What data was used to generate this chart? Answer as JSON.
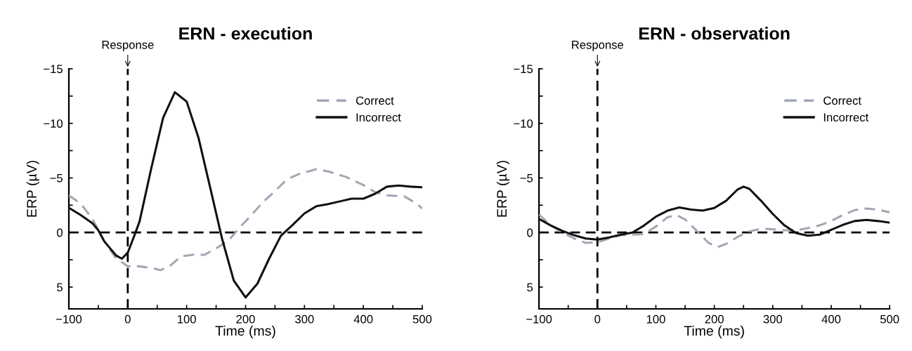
{
  "chart_data": [
    {
      "type": "line",
      "title": "ERN - execution",
      "xlabel": "Time (ms)",
      "ylabel": "ERP (µV)",
      "xlim": [
        -100,
        500
      ],
      "ylim": [
        7,
        -15
      ],
      "xticks": [
        -100,
        {
          "value": -50,
          "label": null
        },
        0,
        {
          "value": 50,
          "label": null
        },
        100,
        {
          "value": 150,
          "label": null
        },
        200,
        {
          "value": 250,
          "label": null
        },
        300,
        {
          "value": 350,
          "label": null
        },
        400,
        {
          "value": 450,
          "label": null
        },
        500
      ],
      "yticks": [
        -15,
        {
          "value": -12.5,
          "label": null
        },
        -10,
        {
          "value": -7.5,
          "label": null
        },
        -5,
        {
          "value": -2.5,
          "label": null
        },
        0,
        {
          "value": 2.5,
          "label": null
        },
        5
      ],
      "grid": false,
      "legend": "top right",
      "ref_lines": [
        {
          "axis": "x",
          "value": 0,
          "label": "Response",
          "color": "#000000",
          "line_style": "dashed"
        },
        {
          "axis": "y",
          "value": 0,
          "color": "#000000",
          "line_style": "dashed"
        }
      ],
      "series": [
        {
          "name": "Correct",
          "color": "#a0a8b4",
          "line_style": "dashed",
          "x": [
            -100,
            -80,
            -60,
            -40,
            -20,
            0,
            20,
            40,
            55,
            70,
            90,
            110,
            130,
            150,
            170,
            190,
            210,
            230,
            250,
            270,
            290,
            320,
            340,
            370,
            400,
            420,
            440,
            470,
            490,
            500
          ],
          "values": [
            -3.4,
            -2.65,
            -1.25,
            0.8,
            2.35,
            3.1,
            3.1,
            3.25,
            3.45,
            3.15,
            2.2,
            2.05,
            2.05,
            1.45,
            0.8,
            -0.45,
            -1.6,
            -2.8,
            -3.8,
            -4.85,
            -5.35,
            -5.8,
            -5.6,
            -5.1,
            -4.35,
            -3.7,
            -3.4,
            -3.3,
            -2.65,
            -2.2
          ]
        },
        {
          "name": "Incorrect",
          "color": "#111111",
          "line_style": "solid",
          "x": [
            -100,
            -80,
            -60,
            -50,
            -40,
            -20,
            -10,
            0,
            10,
            20,
            40,
            60,
            80,
            100,
            120,
            140,
            160,
            180,
            200,
            220,
            240,
            260,
            280,
            300,
            320,
            340,
            360,
            380,
            400,
            420,
            440,
            460,
            480,
            500
          ],
          "values": [
            -2.26,
            -1.6,
            -0.85,
            -0.2,
            0.8,
            2.1,
            2.4,
            1.85,
            0.45,
            -1.0,
            -5.9,
            -10.5,
            -12.85,
            -12.0,
            -8.7,
            -4.1,
            0.55,
            4.4,
            5.95,
            4.7,
            2.4,
            0.3,
            -0.7,
            -1.75,
            -2.4,
            -2.6,
            -2.85,
            -3.1,
            -3.1,
            -3.55,
            -4.2,
            -4.3,
            -4.2,
            -4.15
          ]
        }
      ]
    },
    {
      "type": "line",
      "title": "ERN - observation",
      "xlabel": "Time (ms)",
      "ylabel": "ERP (µV)",
      "xlim": [
        -100,
        500
      ],
      "ylim": [
        7,
        -15
      ],
      "xticks": [
        -100,
        {
          "value": -50,
          "label": null
        },
        0,
        {
          "value": 50,
          "label": null
        },
        100,
        {
          "value": 150,
          "label": null
        },
        200,
        {
          "value": 250,
          "label": null
        },
        300,
        {
          "value": 350,
          "label": null
        },
        400,
        {
          "value": 450,
          "label": null
        },
        500
      ],
      "yticks": [
        -15,
        {
          "value": -12.5,
          "label": null
        },
        -10,
        {
          "value": -7.5,
          "label": null
        },
        -5,
        {
          "value": -2.5,
          "label": null
        },
        0,
        {
          "value": 2.5,
          "label": null
        },
        5
      ],
      "grid": false,
      "legend": "top right",
      "ref_lines": [
        {
          "axis": "x",
          "value": 0,
          "label": "Response",
          "color": "#000000",
          "line_style": "dashed"
        },
        {
          "axis": "y",
          "value": 0,
          "color": "#000000",
          "line_style": "dashed"
        }
      ],
      "series": [
        {
          "name": "Correct",
          "color": "#a0a8b4",
          "line_style": "dashed",
          "x": [
            -100,
            -80,
            -60,
            -40,
            -20,
            0,
            20,
            40,
            60,
            80,
            100,
            120,
            135,
            150,
            170,
            190,
            205,
            220,
            240,
            260,
            280,
            300,
            320,
            340,
            360,
            380,
            400,
            420,
            440,
            460,
            480,
            500
          ],
          "values": [
            -1.65,
            -0.65,
            0,
            0.55,
            0.95,
            0.9,
            0.55,
            0.25,
            0.2,
            0.15,
            -0.55,
            -1.4,
            -1.6,
            -1.2,
            -0.15,
            0.95,
            1.35,
            1.05,
            0.4,
            -0.1,
            -0.35,
            -0.3,
            -0.2,
            -0.2,
            -0.4,
            -0.65,
            -1.05,
            -1.6,
            -2.05,
            -2.2,
            -2.1,
            -1.85
          ]
        },
        {
          "name": "Incorrect",
          "color": "#111111",
          "line_style": "solid",
          "x": [
            -100,
            -80,
            -60,
            -40,
            -20,
            0,
            20,
            40,
            60,
            80,
            100,
            120,
            140,
            160,
            180,
            200,
            220,
            240,
            250,
            260,
            280,
            300,
            320,
            340,
            360,
            380,
            400,
            420,
            440,
            460,
            480,
            500
          ],
          "values": [
            -1.25,
            -0.65,
            -0.15,
            0.25,
            0.55,
            0.65,
            0.45,
            0.2,
            0,
            -0.65,
            -1.45,
            -2.0,
            -2.3,
            -2.1,
            -2.0,
            -2.25,
            -2.9,
            -3.95,
            -4.2,
            -4.0,
            -2.9,
            -1.7,
            -0.65,
            0.05,
            0.3,
            0.2,
            -0.25,
            -0.7,
            -1.05,
            -1.15,
            -1.05,
            -0.9
          ]
        }
      ]
    }
  ]
}
